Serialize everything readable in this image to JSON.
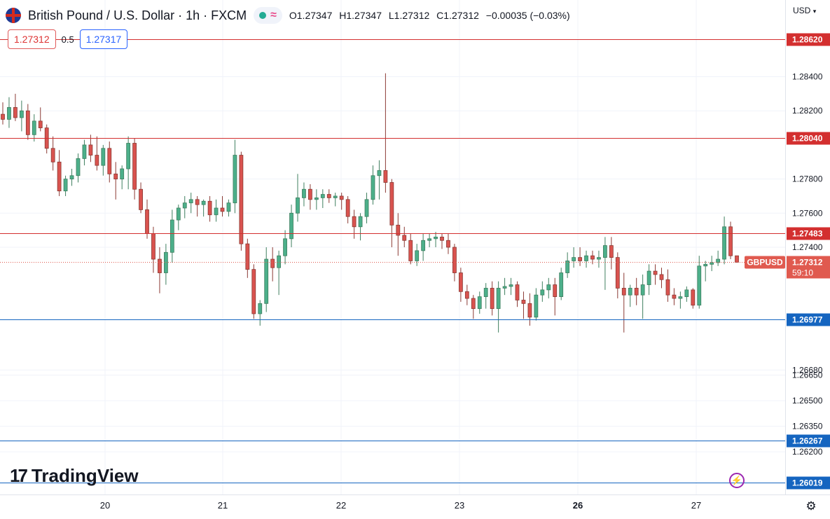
{
  "header": {
    "title": "British Pound / U.S. Dollar · 1h · FXCM",
    "open": "O1.27347",
    "high": "H1.27347",
    "low": "L1.27312",
    "close": "C1.27312",
    "change": "−0.00035 (−0.03%)"
  },
  "quote": {
    "sell": "1.27312",
    "spread": "0.5",
    "buy": "1.27317"
  },
  "currency": "USD",
  "logo": {
    "mark": "17",
    "text": "TradingView"
  },
  "icons": {
    "flag": "uk-flag-icon",
    "status": "market-open-icon",
    "wave": "wave-icon",
    "bolt": "lightning-icon",
    "gear": "gear-icon"
  },
  "colors": {
    "up": "#26a69a",
    "down": "#ef5350",
    "up_fill": "#4caf8a",
    "down_fill": "#d9534f",
    "resistance": "#d32f2f",
    "support": "#1565c0",
    "current": "#e05a4f"
  },
  "chart_data": {
    "type": "candlestick",
    "symbol": "GBPUSD",
    "timeframe": "1h",
    "countdown": "59:10",
    "last_price": 1.27312,
    "x_ticks": [
      "20",
      "21",
      "22",
      "23",
      "26",
      "27"
    ],
    "y_ticks": [
      1.284,
      1.282,
      1.278,
      1.276,
      1.274,
      1.2668,
      1.2665,
      1.265,
      1.2635,
      1.262
    ],
    "ylim": [
      1.2595,
      1.2885
    ],
    "horizontal_lines": [
      {
        "price": 1.2862,
        "label": "1.28620",
        "kind": "resistance"
      },
      {
        "price": 1.2804,
        "label": "1.28040",
        "kind": "resistance"
      },
      {
        "price": 1.27483,
        "label": "1.27483",
        "kind": "resistance"
      },
      {
        "price": 1.26977,
        "label": "1.26977",
        "kind": "support"
      },
      {
        "price": 1.26267,
        "label": "1.26267",
        "kind": "support"
      },
      {
        "price": 1.26019,
        "label": "1.26019",
        "kind": "support"
      }
    ],
    "candles": [
      [
        1.2818,
        1.2825,
        1.2812,
        1.2815
      ],
      [
        1.2815,
        1.2828,
        1.281,
        1.2822
      ],
      [
        1.2822,
        1.283,
        1.2814,
        1.2816
      ],
      [
        1.2816,
        1.2826,
        1.2808,
        1.282
      ],
      [
        1.282,
        1.2824,
        1.2803,
        1.2806
      ],
      [
        1.2806,
        1.2818,
        1.2802,
        1.2814
      ],
      [
        1.2814,
        1.2822,
        1.2808,
        1.281
      ],
      [
        1.281,
        1.2812,
        1.2795,
        1.2798
      ],
      [
        1.2798,
        1.2805,
        1.2785,
        1.279
      ],
      [
        1.279,
        1.2797,
        1.277,
        1.2773
      ],
      [
        1.2773,
        1.2782,
        1.277,
        1.278
      ],
      [
        1.278,
        1.2786,
        1.2776,
        1.2782
      ],
      [
        1.2782,
        1.2795,
        1.2778,
        1.2792
      ],
      [
        1.2792,
        1.2803,
        1.2788,
        1.28
      ],
      [
        1.28,
        1.2806,
        1.279,
        1.2794
      ],
      [
        1.2794,
        1.2805,
        1.2785,
        1.2788
      ],
      [
        1.2788,
        1.28,
        1.2782,
        1.2798
      ],
      [
        1.2798,
        1.2802,
        1.2778,
        1.2783
      ],
      [
        1.2783,
        1.279,
        1.2768,
        1.278
      ],
      [
        1.278,
        1.2788,
        1.2774,
        1.2786
      ],
      [
        1.2786,
        1.2805,
        1.2774,
        1.2801
      ],
      [
        1.2801,
        1.2804,
        1.2768,
        1.2774
      ],
      [
        1.2774,
        1.2778,
        1.276,
        1.2762
      ],
      [
        1.2762,
        1.2768,
        1.2745,
        1.2748
      ],
      [
        1.2748,
        1.2752,
        1.2725,
        1.2733
      ],
      [
        1.2733,
        1.274,
        1.2713,
        1.2725
      ],
      [
        1.2725,
        1.2742,
        1.2718,
        1.2737
      ],
      [
        1.2737,
        1.2762,
        1.2731,
        1.2756
      ],
      [
        1.2756,
        1.2765,
        1.275,
        1.2763
      ],
      [
        1.2763,
        1.277,
        1.2757,
        1.2766
      ],
      [
        1.2766,
        1.2772,
        1.276,
        1.2768
      ],
      [
        1.2768,
        1.277,
        1.2758,
        1.2765
      ],
      [
        1.2765,
        1.2768,
        1.2758,
        1.2767
      ],
      [
        1.2767,
        1.277,
        1.2755,
        1.2759
      ],
      [
        1.2759,
        1.2768,
        1.2755,
        1.2763
      ],
      [
        1.2763,
        1.277,
        1.2758,
        1.2761
      ],
      [
        1.2761,
        1.2768,
        1.2758,
        1.2766
      ],
      [
        1.2766,
        1.2803,
        1.276,
        1.2794
      ],
      [
        1.2794,
        1.2796,
        1.2738,
        1.2742
      ],
      [
        1.2742,
        1.2745,
        1.2722,
        1.2727
      ],
      [
        1.2727,
        1.273,
        1.2698,
        1.2701
      ],
      [
        1.2701,
        1.2709,
        1.2694,
        1.2707
      ],
      [
        1.2707,
        1.274,
        1.2702,
        1.2733
      ],
      [
        1.2733,
        1.274,
        1.272,
        1.2728
      ],
      [
        1.2728,
        1.2738,
        1.2712,
        1.2735
      ],
      [
        1.2735,
        1.275,
        1.273,
        1.2745
      ],
      [
        1.2745,
        1.2765,
        1.274,
        1.276
      ],
      [
        1.276,
        1.2783,
        1.2755,
        1.2769
      ],
      [
        1.2769,
        1.2778,
        1.2764,
        1.2774
      ],
      [
        1.2774,
        1.2777,
        1.2762,
        1.2768
      ],
      [
        1.2768,
        1.2774,
        1.2762,
        1.2769
      ],
      [
        1.2769,
        1.2774,
        1.2763,
        1.2771
      ],
      [
        1.2771,
        1.2774,
        1.2766,
        1.2769
      ],
      [
        1.2769,
        1.2772,
        1.2764,
        1.277
      ],
      [
        1.277,
        1.2772,
        1.2762,
        1.2768
      ],
      [
        1.2768,
        1.277,
        1.2754,
        1.2758
      ],
      [
        1.2758,
        1.2762,
        1.2745,
        1.2752
      ],
      [
        1.2752,
        1.276,
        1.2744,
        1.2758
      ],
      [
        1.2758,
        1.2772,
        1.2754,
        1.2768
      ],
      [
        1.2768,
        1.2788,
        1.2765,
        1.2782
      ],
      [
        1.2782,
        1.2791,
        1.2768,
        1.2785
      ],
      [
        1.2785,
        1.2842,
        1.2772,
        1.2778
      ],
      [
        1.2778,
        1.278,
        1.274,
        1.2753
      ],
      [
        1.2753,
        1.276,
        1.2735,
        1.2747
      ],
      [
        1.2747,
        1.2752,
        1.274,
        1.2744
      ],
      [
        1.2744,
        1.2748,
        1.273,
        1.2732
      ],
      [
        1.2732,
        1.2742,
        1.2729,
        1.2738
      ],
      [
        1.2738,
        1.2748,
        1.2732,
        1.2744
      ],
      [
        1.2744,
        1.2748,
        1.274,
        1.2745
      ],
      [
        1.2745,
        1.2749,
        1.274,
        1.2746
      ],
      [
        1.2746,
        1.2748,
        1.2739,
        1.2744
      ],
      [
        1.2744,
        1.2748,
        1.2736,
        1.274
      ],
      [
        1.274,
        1.2742,
        1.272,
        1.2725
      ],
      [
        1.2725,
        1.2728,
        1.2708,
        1.2714
      ],
      [
        1.2714,
        1.2718,
        1.2706,
        1.271
      ],
      [
        1.271,
        1.2712,
        1.2698,
        1.2704
      ],
      [
        1.2704,
        1.2714,
        1.2701,
        1.2711
      ],
      [
        1.2711,
        1.2719,
        1.2704,
        1.2716
      ],
      [
        1.2716,
        1.272,
        1.27,
        1.2704
      ],
      [
        1.2704,
        1.272,
        1.269,
        1.2716
      ],
      [
        1.2716,
        1.2722,
        1.2712,
        1.2717
      ],
      [
        1.2717,
        1.2722,
        1.2712,
        1.2718
      ],
      [
        1.2718,
        1.272,
        1.2705,
        1.2709
      ],
      [
        1.2709,
        1.2714,
        1.2698,
        1.2707
      ],
      [
        1.2707,
        1.2713,
        1.2694,
        1.2699
      ],
      [
        1.2699,
        1.2716,
        1.2697,
        1.2712
      ],
      [
        1.2712,
        1.272,
        1.2708,
        1.2715
      ],
      [
        1.2715,
        1.2722,
        1.271,
        1.2718
      ],
      [
        1.2718,
        1.2722,
        1.27,
        1.2711
      ],
      [
        1.2711,
        1.2728,
        1.2709,
        1.2725
      ],
      [
        1.2725,
        1.2737,
        1.2722,
        1.2732
      ],
      [
        1.2732,
        1.274,
        1.2728,
        1.2734
      ],
      [
        1.2734,
        1.274,
        1.2729,
        1.2732
      ],
      [
        1.2732,
        1.2738,
        1.2728,
        1.2735
      ],
      [
        1.2735,
        1.2738,
        1.273,
        1.2733
      ],
      [
        1.2733,
        1.2738,
        1.2728,
        1.2734
      ],
      [
        1.2734,
        1.2746,
        1.2715,
        1.2741
      ],
      [
        1.2741,
        1.2746,
        1.2727,
        1.2734
      ],
      [
        1.2734,
        1.2737,
        1.271,
        1.2716
      ],
      [
        1.2716,
        1.2725,
        1.269,
        1.2712
      ],
      [
        1.2712,
        1.2718,
        1.2705,
        1.2716
      ],
      [
        1.2716,
        1.2722,
        1.2706,
        1.2712
      ],
      [
        1.2712,
        1.2724,
        1.2698,
        1.2718
      ],
      [
        1.2718,
        1.273,
        1.2712,
        1.2726
      ],
      [
        1.2726,
        1.273,
        1.2718,
        1.2724
      ],
      [
        1.2724,
        1.2728,
        1.2716,
        1.2721
      ],
      [
        1.2721,
        1.2727,
        1.2708,
        1.2712
      ],
      [
        1.2712,
        1.2716,
        1.2706,
        1.271
      ],
      [
        1.271,
        1.2714,
        1.2704,
        1.2711
      ],
      [
        1.2711,
        1.2717,
        1.2708,
        1.2715
      ],
      [
        1.2715,
        1.2716,
        1.2704,
        1.2706
      ],
      [
        1.2706,
        1.2735,
        1.2704,
        1.2729
      ],
      [
        1.2729,
        1.2732,
        1.272,
        1.273
      ],
      [
        1.273,
        1.2735,
        1.2726,
        1.2731
      ],
      [
        1.2731,
        1.2738,
        1.2729,
        1.2733
      ],
      [
        1.2733,
        1.2758,
        1.273,
        1.2752
      ],
      [
        1.2752,
        1.2755,
        1.2733,
        1.2735
      ],
      [
        1.2735,
        1.2735,
        1.2731,
        1.27312
      ]
    ]
  }
}
